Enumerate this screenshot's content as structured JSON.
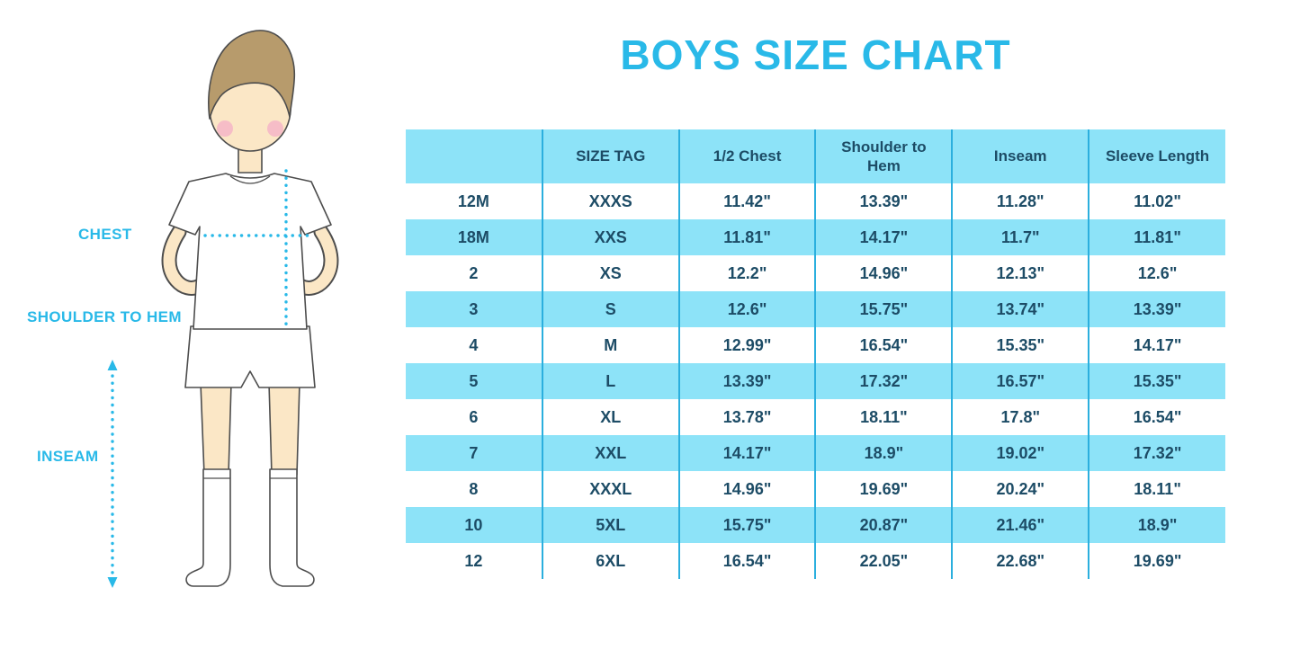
{
  "title": "BOYS SIZE CHART",
  "colors": {
    "accent": "#29B9E8",
    "row_blue": "#8DE3F8",
    "text_dark": "#1D4C66",
    "border_blue": "#2BAFDE",
    "skin": "#FBE7C6",
    "hair": "#B79B6C",
    "cheek": "#F6BDC7",
    "outline": "#4D4D4D"
  },
  "figure": {
    "labels": {
      "chest": "CHEST",
      "shoulder_to_hem": "SHOULDER TO HEM",
      "inseam": "INSEAM"
    }
  },
  "chart_data": {
    "type": "table",
    "title": "BOYS SIZE CHART",
    "columns": [
      "",
      "SIZE TAG",
      "1/2 Chest",
      "Shoulder to Hem",
      "Inseam",
      "Sleeve Length"
    ],
    "rows": [
      [
        "12M",
        "XXXS",
        "11.42\"",
        "13.39\"",
        "11.28\"",
        "11.02\""
      ],
      [
        "18M",
        "XXS",
        "11.81\"",
        "14.17\"",
        "11.7\"",
        "11.81\""
      ],
      [
        "2",
        "XS",
        "12.2\"",
        "14.96\"",
        "12.13\"",
        "12.6\""
      ],
      [
        "3",
        "S",
        "12.6\"",
        "15.75\"",
        "13.74\"",
        "13.39\""
      ],
      [
        "4",
        "M",
        "12.99\"",
        "16.54\"",
        "15.35\"",
        "14.17\""
      ],
      [
        "5",
        "L",
        "13.39\"",
        "17.32\"",
        "16.57\"",
        "15.35\""
      ],
      [
        "6",
        "XL",
        "13.78\"",
        "18.11\"",
        "17.8\"",
        "16.54\""
      ],
      [
        "7",
        "XXL",
        "14.17\"",
        "18.9\"",
        "19.02\"",
        "17.32\""
      ],
      [
        "8",
        "XXXL",
        "14.96\"",
        "19.69\"",
        "20.24\"",
        "18.11\""
      ],
      [
        "10",
        "5XL",
        "15.75\"",
        "20.87\"",
        "21.46\"",
        "18.9\""
      ],
      [
        "12",
        "6XL",
        "16.54\"",
        "22.05\"",
        "22.68\"",
        "19.69\""
      ]
    ]
  }
}
